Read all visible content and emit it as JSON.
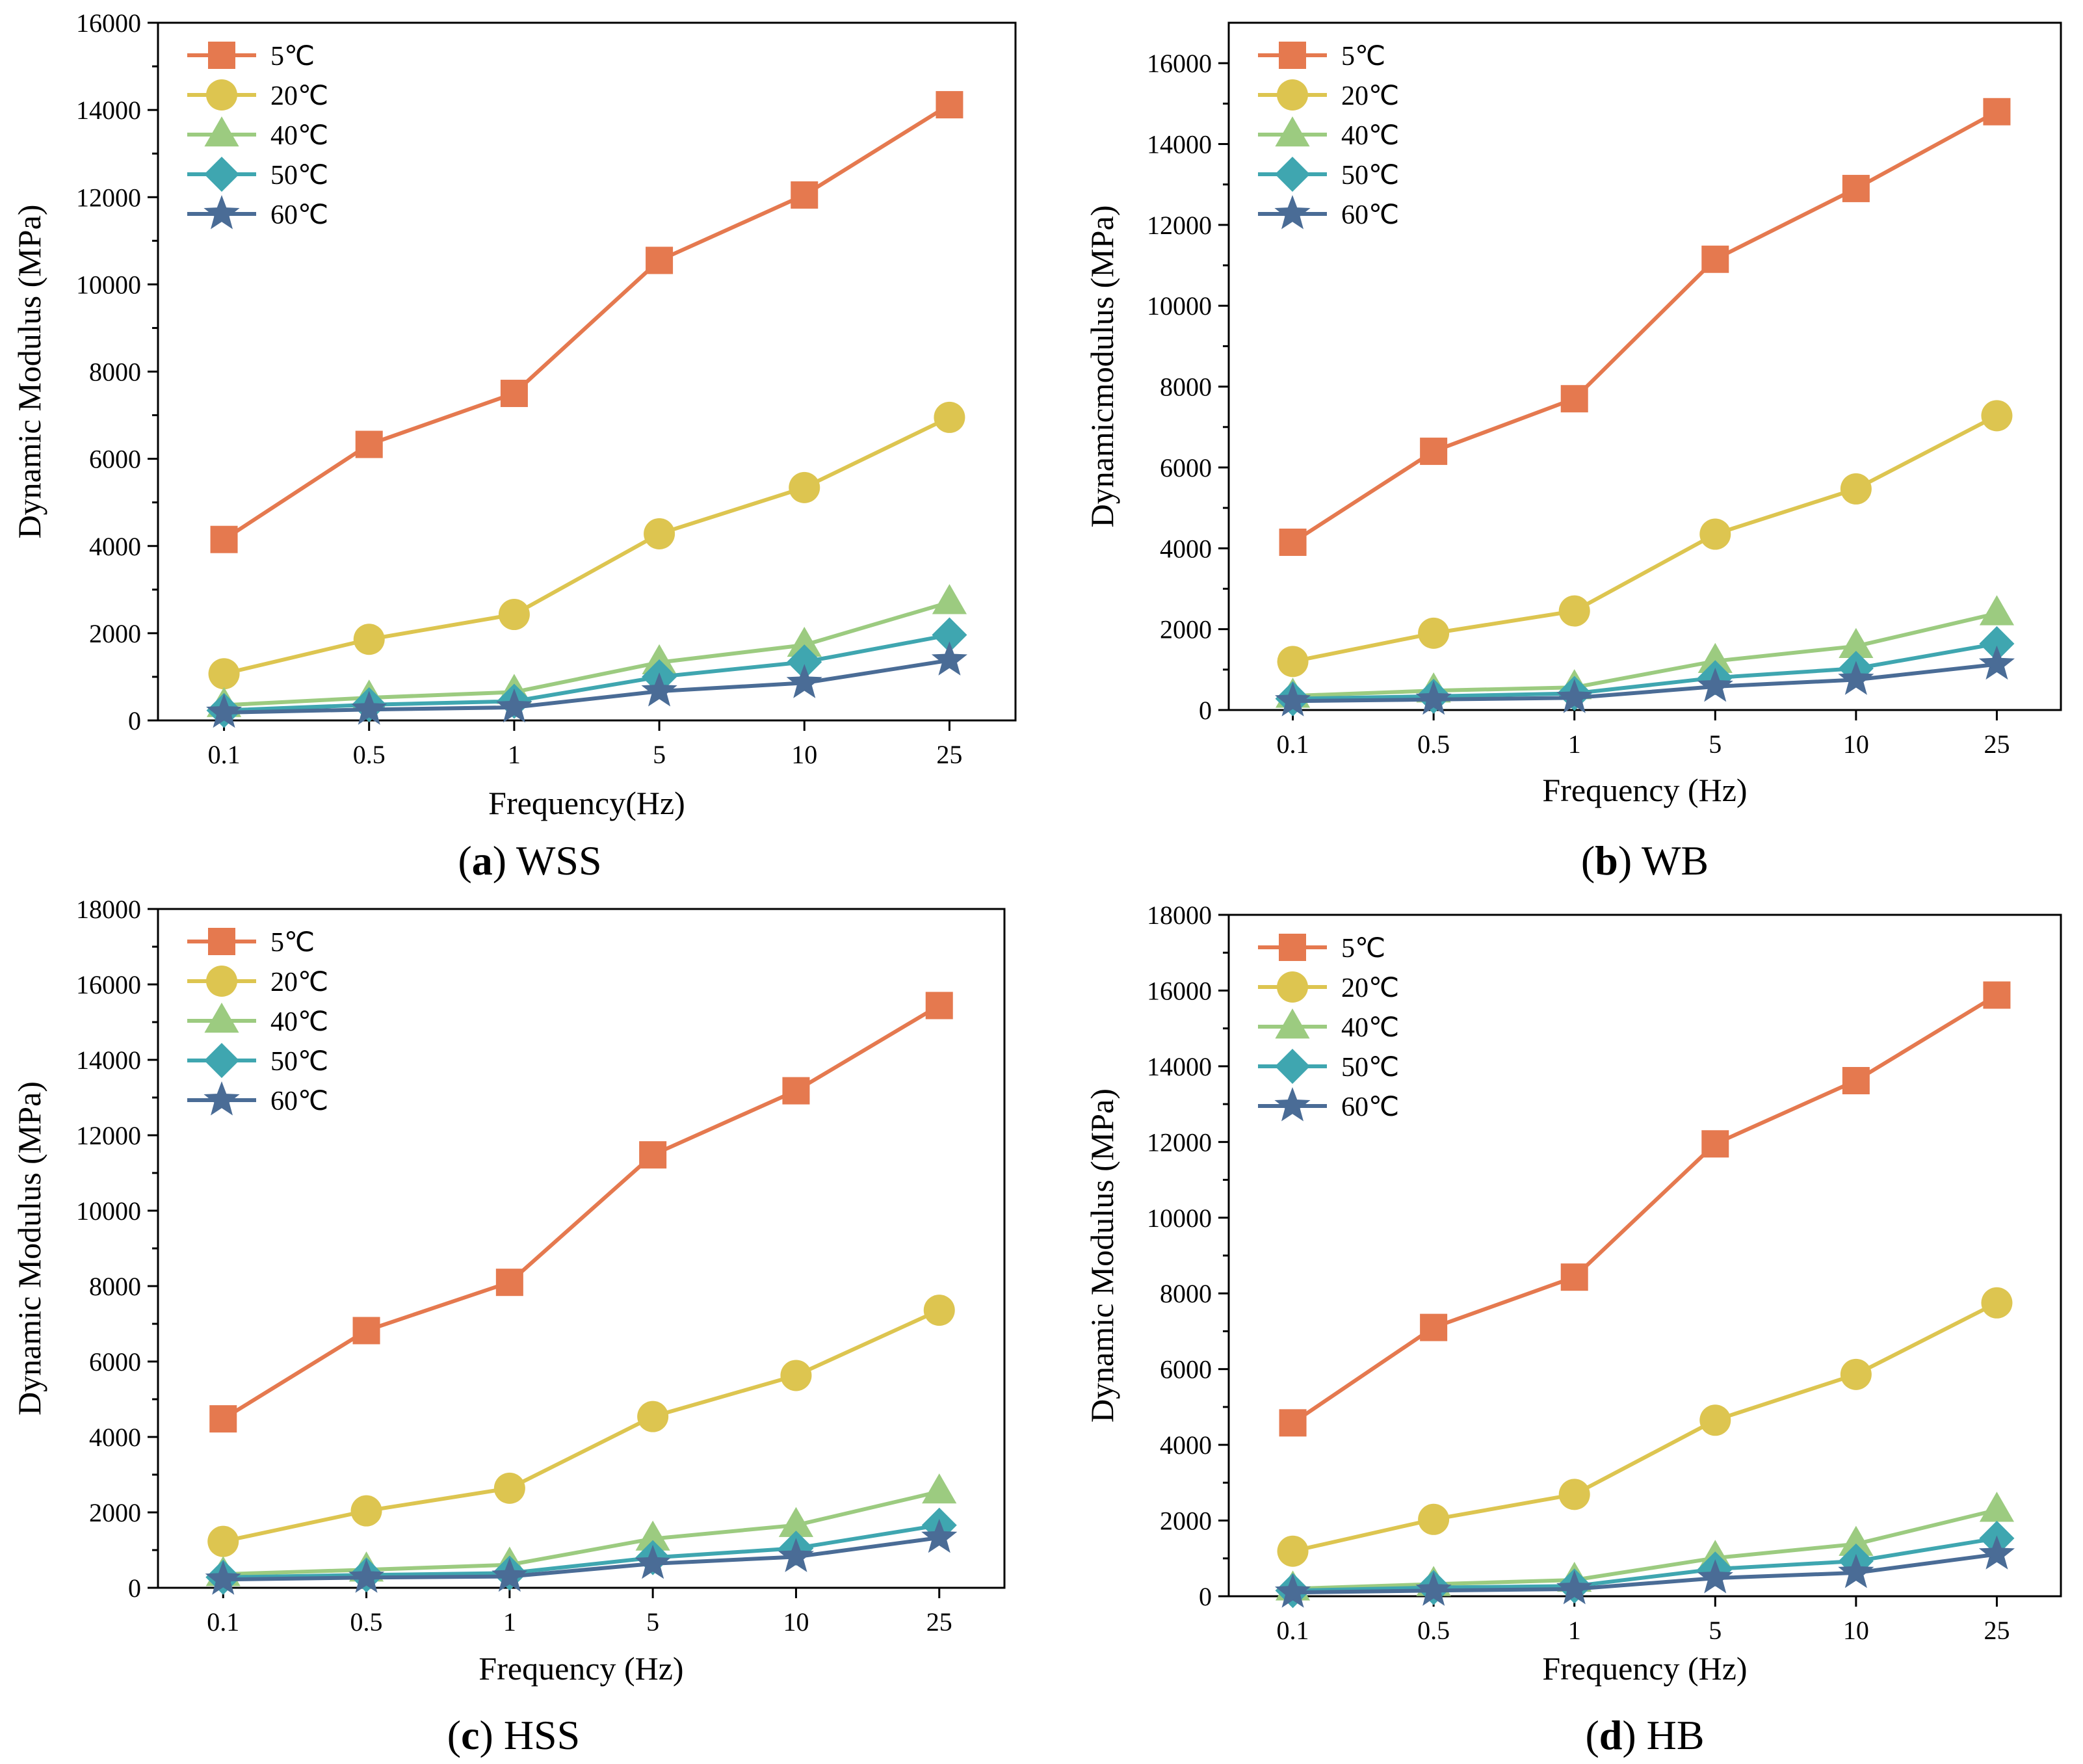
{
  "colors": {
    "5C": "#E5794F",
    "20C": "#DDC550",
    "40C": "#9CCB80",
    "50C": "#3FA6B0",
    "60C": "#4A6C96"
  },
  "chart_data": [
    {
      "type": "line",
      "panel_label": "a",
      "panel_name": "WSS",
      "caption_open": "(",
      "caption_close": ")",
      "categories": [
        "0.1",
        "0.5",
        "1",
        "5",
        "10",
        "25"
      ],
      "xlabel": "Frequency(Hz)",
      "ylabel": "Dynamic Modulus (MPa)",
      "ylim": [
        0,
        16000
      ],
      "yticks": [
        0,
        2000,
        4000,
        6000,
        8000,
        10000,
        12000,
        14000,
        16000
      ],
      "legend_position": "top-left",
      "series": [
        {
          "name": "5℃",
          "key": "5C",
          "marker": "square",
          "values": [
            4150,
            6330,
            7500,
            10550,
            12050,
            14120
          ]
        },
        {
          "name": "20℃",
          "key": "20C",
          "marker": "circle",
          "values": [
            1070,
            1860,
            2430,
            4280,
            5340,
            6950
          ]
        },
        {
          "name": "40℃",
          "key": "40C",
          "marker": "triangle",
          "values": [
            350,
            520,
            650,
            1330,
            1730,
            2710
          ]
        },
        {
          "name": "50℃",
          "key": "50C",
          "marker": "diamond",
          "values": [
            230,
            360,
            440,
            1000,
            1340,
            1960
          ]
        },
        {
          "name": "60℃",
          "key": "60C",
          "marker": "star",
          "values": [
            180,
            250,
            300,
            670,
            860,
            1380
          ]
        }
      ]
    },
    {
      "type": "line",
      "panel_label": "b",
      "panel_name": "WB",
      "caption_open": "(",
      "caption_close": ")",
      "categories": [
        "0.1",
        "0.5",
        "1",
        "5",
        "10",
        "25"
      ],
      "xlabel": "Frequency (Hz)",
      "ylabel": "Dynamicmodulus (MPa)",
      "ylim": [
        0,
        17000
      ],
      "yticks": [
        0,
        2000,
        4000,
        6000,
        8000,
        10000,
        12000,
        14000,
        16000
      ],
      "legend_position": "top-left",
      "series": [
        {
          "name": "5℃",
          "key": "5C",
          "marker": "square",
          "values": [
            4150,
            6400,
            7700,
            11150,
            12900,
            14800
          ]
        },
        {
          "name": "20℃",
          "key": "20C",
          "marker": "circle",
          "values": [
            1200,
            1900,
            2450,
            4350,
            5470,
            7280
          ]
        },
        {
          "name": "40℃",
          "key": "40C",
          "marker": "triangle",
          "values": [
            350,
            480,
            560,
            1210,
            1580,
            2390
          ]
        },
        {
          "name": "50℃",
          "key": "50C",
          "marker": "diamond",
          "values": [
            280,
            340,
            410,
            800,
            1030,
            1640
          ]
        },
        {
          "name": "60℃",
          "key": "60C",
          "marker": "star",
          "values": [
            220,
            260,
            300,
            580,
            750,
            1130
          ]
        }
      ]
    },
    {
      "type": "line",
      "panel_label": "c",
      "panel_name": "HSS",
      "caption_open": "(",
      "caption_close": ")",
      "categories": [
        "0.1",
        "0.5",
        "1",
        "5",
        "10",
        "25"
      ],
      "xlabel": "Frequency (Hz)",
      "ylabel": "Dynamic Modulus (MPa)",
      "ylim": [
        0,
        18000
      ],
      "yticks": [
        0,
        2000,
        4000,
        6000,
        8000,
        10000,
        12000,
        14000,
        16000,
        18000
      ],
      "legend_position": "top-left",
      "series": [
        {
          "name": "5℃",
          "key": "5C",
          "marker": "square",
          "values": [
            4480,
            6820,
            8100,
            11480,
            13180,
            15440
          ]
        },
        {
          "name": "20℃",
          "key": "20C",
          "marker": "circle",
          "values": [
            1230,
            2040,
            2640,
            4540,
            5630,
            7360
          ]
        },
        {
          "name": "40℃",
          "key": "40C",
          "marker": "triangle",
          "values": [
            360,
            480,
            610,
            1300,
            1660,
            2550
          ]
        },
        {
          "name": "50℃",
          "key": "50C",
          "marker": "diamond",
          "values": [
            280,
            340,
            390,
            800,
            1050,
            1660
          ]
        },
        {
          "name": "60℃",
          "key": "60C",
          "marker": "star",
          "values": [
            220,
            270,
            300,
            640,
            820,
            1330
          ]
        }
      ]
    },
    {
      "type": "line",
      "panel_label": "d",
      "panel_name": "HB",
      "caption_open": "(",
      "caption_close": ")",
      "categories": [
        "0.1",
        "0.5",
        "1",
        "5",
        "10",
        "25"
      ],
      "xlabel": "Frequency (Hz)",
      "ylabel": "Dynamic Modulus (MPa)",
      "ylim": [
        0,
        18000
      ],
      "yticks": [
        0,
        2000,
        4000,
        6000,
        8000,
        10000,
        12000,
        14000,
        16000,
        18000
      ],
      "legend_position": "top-left",
      "series": [
        {
          "name": "5℃",
          "key": "5C",
          "marker": "square",
          "values": [
            4580,
            7100,
            8430,
            11950,
            13620,
            15880
          ]
        },
        {
          "name": "20℃",
          "key": "20C",
          "marker": "circle",
          "values": [
            1190,
            2030,
            2690,
            4650,
            5860,
            7750
          ]
        },
        {
          "name": "40℃",
          "key": "40C",
          "marker": "triangle",
          "values": [
            200,
            320,
            430,
            1010,
            1380,
            2280
          ]
        },
        {
          "name": "50℃",
          "key": "50C",
          "marker": "diamond",
          "values": [
            150,
            230,
            270,
            720,
            930,
            1530
          ]
        },
        {
          "name": "60℃",
          "key": "60C",
          "marker": "star",
          "values": [
            100,
            150,
            190,
            480,
            620,
            1110
          ]
        }
      ]
    }
  ]
}
